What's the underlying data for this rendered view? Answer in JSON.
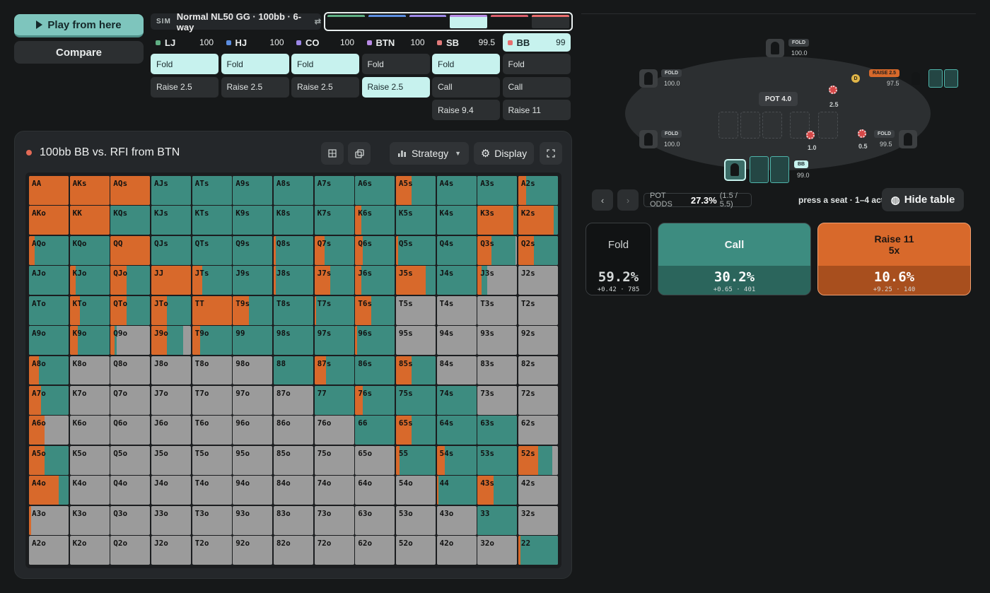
{
  "toolbar": {
    "play_label": "Play from here",
    "compare_label": "Compare"
  },
  "sim": {
    "tag": "SIM",
    "title": "Normal NL50 GG · 100bb · 6-way",
    "switch_icon": "swap-icon"
  },
  "history_colors": [
    "#5fae83",
    "#5b8de0",
    "#9c87e6",
    "#b98be6",
    "#d95e6b",
    "#e86d6d"
  ],
  "players": [
    {
      "name": "LJ",
      "stack": "100",
      "color": "#5fae83"
    },
    {
      "name": "HJ",
      "stack": "100",
      "color": "#5b8de0"
    },
    {
      "name": "CO",
      "stack": "100",
      "color": "#9c87e6"
    },
    {
      "name": "BTN",
      "stack": "100",
      "color": "#b98be6"
    },
    {
      "name": "SB",
      "stack": "99.5",
      "color": "#e27a7a"
    },
    {
      "name": "BB",
      "stack": "99",
      "color": "#e86d6d"
    }
  ],
  "actions": {
    "LJ": [
      "Fold",
      "Raise 2.5"
    ],
    "HJ": [
      "Fold",
      "Raise 2.5"
    ],
    "CO": [
      "Fold",
      "Raise 2.5"
    ],
    "BTN": [
      "Fold",
      "Raise 2.5"
    ],
    "SB": [
      "Fold",
      "Call",
      "Raise 9.4"
    ],
    "BB": [
      "Fold",
      "Call",
      "Raise 11"
    ]
  },
  "panel": {
    "title": "100bb BB vs. RFI from BTN",
    "strategy_label": "Strategy",
    "display_label": "Display"
  },
  "colors": {
    "fold": "#9b9b9b",
    "call": "#3d8c80",
    "raise": "#d8692b",
    "accent": "#7ec5bd"
  },
  "grid": [
    [
      "AA",
      "AKs",
      "AQs",
      "AJs",
      "ATs",
      "A9s",
      "A8s",
      "A7s",
      "A6s",
      "A5s",
      "A4s",
      "A3s",
      "A2s"
    ],
    [
      "AKo",
      "KK",
      "KQs",
      "KJs",
      "KTs",
      "K9s",
      "K8s",
      "K7s",
      "K6s",
      "K5s",
      "K4s",
      "K3s",
      "K2s"
    ],
    [
      "AQo",
      "KQo",
      "QQ",
      "QJs",
      "QTs",
      "Q9s",
      "Q8s",
      "Q7s",
      "Q6s",
      "Q5s",
      "Q4s",
      "Q3s",
      "Q2s"
    ],
    [
      "AJo",
      "KJo",
      "QJo",
      "JJ",
      "JTs",
      "J9s",
      "J8s",
      "J7s",
      "J6s",
      "J5s",
      "J4s",
      "J3s",
      "J2s"
    ],
    [
      "ATo",
      "KTo",
      "QTo",
      "JTo",
      "TT",
      "T9s",
      "T8s",
      "T7s",
      "T6s",
      "T5s",
      "T4s",
      "T3s",
      "T2s"
    ],
    [
      "A9o",
      "K9o",
      "Q9o",
      "J9o",
      "T9o",
      "99",
      "98s",
      "97s",
      "96s",
      "95s",
      "94s",
      "93s",
      "92s"
    ],
    [
      "A8o",
      "K8o",
      "Q8o",
      "J8o",
      "T8o",
      "98o",
      "88",
      "87s",
      "86s",
      "85s",
      "84s",
      "83s",
      "82s"
    ],
    [
      "A7o",
      "K7o",
      "Q7o",
      "J7o",
      "T7o",
      "97o",
      "87o",
      "77",
      "76s",
      "75s",
      "74s",
      "73s",
      "72s"
    ],
    [
      "A6o",
      "K6o",
      "Q6o",
      "J6o",
      "T6o",
      "96o",
      "86o",
      "76o",
      "66",
      "65s",
      "64s",
      "63s",
      "62s"
    ],
    [
      "A5o",
      "K5o",
      "Q5o",
      "J5o",
      "T5o",
      "95o",
      "85o",
      "75o",
      "65o",
      "55",
      "54s",
      "53s",
      "52s"
    ],
    [
      "A4o",
      "K4o",
      "Q4o",
      "J4o",
      "T4o",
      "94o",
      "84o",
      "74o",
      "64o",
      "54o",
      "44",
      "43s",
      "42s"
    ],
    [
      "A3o",
      "K3o",
      "Q3o",
      "J3o",
      "T3o",
      "93o",
      "83o",
      "73o",
      "63o",
      "53o",
      "43o",
      "33",
      "32s"
    ],
    [
      "A2o",
      "K2o",
      "Q2o",
      "J2o",
      "T2o",
      "92o",
      "82o",
      "72o",
      "62o",
      "52o",
      "42o",
      "32o",
      "22"
    ]
  ],
  "strategy": [
    [
      [
        0,
        0,
        100
      ],
      [
        0,
        0,
        100
      ],
      [
        0,
        0,
        100
      ],
      [
        0,
        100,
        0
      ],
      [
        0,
        100,
        0
      ],
      [
        0,
        100,
        0
      ],
      [
        0,
        100,
        0
      ],
      [
        0,
        100,
        0
      ],
      [
        0,
        100,
        0
      ],
      [
        0,
        60,
        40
      ],
      [
        0,
        100,
        0
      ],
      [
        0,
        100,
        0
      ],
      [
        0,
        80,
        20
      ]
    ],
    [
      [
        0,
        0,
        100
      ],
      [
        0,
        0,
        100
      ],
      [
        0,
        100,
        0
      ],
      [
        0,
        100,
        0
      ],
      [
        0,
        100,
        0
      ],
      [
        0,
        100,
        0
      ],
      [
        0,
        100,
        0
      ],
      [
        0,
        100,
        0
      ],
      [
        0,
        85,
        15
      ],
      [
        0,
        100,
        0
      ],
      [
        0,
        100,
        0
      ],
      [
        0,
        10,
        90
      ],
      [
        0,
        10,
        90
      ]
    ],
    [
      [
        0,
        85,
        15
      ],
      [
        0,
        100,
        0
      ],
      [
        0,
        0,
        100
      ],
      [
        0,
        100,
        0
      ],
      [
        0,
        100,
        0
      ],
      [
        0,
        100,
        0
      ],
      [
        0,
        95,
        5
      ],
      [
        0,
        75,
        25
      ],
      [
        0,
        80,
        20
      ],
      [
        0,
        95,
        5
      ],
      [
        0,
        100,
        0
      ],
      [
        5,
        60,
        35
      ],
      [
        0,
        60,
        40
      ]
    ],
    [
      [
        0,
        100,
        0
      ],
      [
        0,
        85,
        15
      ],
      [
        0,
        60,
        40
      ],
      [
        0,
        0,
        100
      ],
      [
        0,
        75,
        25
      ],
      [
        0,
        100,
        0
      ],
      [
        0,
        95,
        5
      ],
      [
        0,
        60,
        40
      ],
      [
        0,
        85,
        15
      ],
      [
        0,
        25,
        75
      ],
      [
        0,
        100,
        0
      ],
      [
        75,
        15,
        10
      ],
      [
        100,
        0,
        0
      ]
    ],
    [
      [
        0,
        100,
        0
      ],
      [
        0,
        75,
        25
      ],
      [
        0,
        60,
        40
      ],
      [
        0,
        60,
        40
      ],
      [
        0,
        0,
        100
      ],
      [
        0,
        60,
        40
      ],
      [
        0,
        100,
        0
      ],
      [
        0,
        95,
        5
      ],
      [
        0,
        60,
        40
      ],
      [
        100,
        0,
        0
      ],
      [
        100,
        0,
        0
      ],
      [
        100,
        0,
        0
      ],
      [
        100,
        0,
        0
      ]
    ],
    [
      [
        0,
        100,
        0
      ],
      [
        0,
        80,
        20
      ],
      [
        85,
        5,
        10
      ],
      [
        20,
        40,
        40
      ],
      [
        0,
        80,
        20
      ],
      [
        0,
        100,
        0
      ],
      [
        0,
        100,
        0
      ],
      [
        0,
        100,
        0
      ],
      [
        0,
        95,
        5
      ],
      [
        100,
        0,
        0
      ],
      [
        100,
        0,
        0
      ],
      [
        100,
        0,
        0
      ],
      [
        100,
        0,
        0
      ]
    ],
    [
      [
        0,
        75,
        25
      ],
      [
        100,
        0,
        0
      ],
      [
        100,
        0,
        0
      ],
      [
        100,
        0,
        0
      ],
      [
        100,
        0,
        0
      ],
      [
        100,
        0,
        0
      ],
      [
        0,
        100,
        0
      ],
      [
        0,
        70,
        30
      ],
      [
        0,
        100,
        0
      ],
      [
        0,
        60,
        40
      ],
      [
        100,
        0,
        0
      ],
      [
        100,
        0,
        0
      ],
      [
        100,
        0,
        0
      ]
    ],
    [
      [
        0,
        70,
        30
      ],
      [
        100,
        0,
        0
      ],
      [
        100,
        0,
        0
      ],
      [
        100,
        0,
        0
      ],
      [
        100,
        0,
        0
      ],
      [
        100,
        0,
        0
      ],
      [
        100,
        0,
        0
      ],
      [
        0,
        100,
        0
      ],
      [
        0,
        80,
        20
      ],
      [
        0,
        100,
        0
      ],
      [
        0,
        100,
        0
      ],
      [
        100,
        0,
        0
      ],
      [
        100,
        0,
        0
      ]
    ],
    [
      [
        60,
        0,
        40
      ],
      [
        100,
        0,
        0
      ],
      [
        100,
        0,
        0
      ],
      [
        100,
        0,
        0
      ],
      [
        100,
        0,
        0
      ],
      [
        100,
        0,
        0
      ],
      [
        100,
        0,
        0
      ],
      [
        100,
        0,
        0
      ],
      [
        0,
        100,
        0
      ],
      [
        0,
        60,
        40
      ],
      [
        0,
        100,
        0
      ],
      [
        0,
        100,
        0
      ],
      [
        100,
        0,
        0
      ]
    ],
    [
      [
        0,
        60,
        40
      ],
      [
        100,
        0,
        0
      ],
      [
        100,
        0,
        0
      ],
      [
        100,
        0,
        0
      ],
      [
        100,
        0,
        0
      ],
      [
        100,
        0,
        0
      ],
      [
        100,
        0,
        0
      ],
      [
        100,
        0,
        0
      ],
      [
        100,
        0,
        0
      ],
      [
        0,
        90,
        10
      ],
      [
        0,
        80,
        20
      ],
      [
        0,
        100,
        0
      ],
      [
        15,
        35,
        50
      ]
    ],
    [
      [
        0,
        25,
        75
      ],
      [
        100,
        0,
        0
      ],
      [
        100,
        0,
        0
      ],
      [
        100,
        0,
        0
      ],
      [
        100,
        0,
        0
      ],
      [
        100,
        0,
        0
      ],
      [
        100,
        0,
        0
      ],
      [
        100,
        0,
        0
      ],
      [
        100,
        0,
        0
      ],
      [
        100,
        0,
        0
      ],
      [
        0,
        95,
        5
      ],
      [
        0,
        60,
        40
      ],
      [
        100,
        0,
        0
      ]
    ],
    [
      [
        95,
        0,
        5
      ],
      [
        100,
        0,
        0
      ],
      [
        100,
        0,
        0
      ],
      [
        100,
        0,
        0
      ],
      [
        100,
        0,
        0
      ],
      [
        100,
        0,
        0
      ],
      [
        100,
        0,
        0
      ],
      [
        100,
        0,
        0
      ],
      [
        100,
        0,
        0
      ],
      [
        100,
        0,
        0
      ],
      [
        100,
        0,
        0
      ],
      [
        0,
        100,
        0
      ],
      [
        100,
        0,
        0
      ]
    ],
    [
      [
        100,
        0,
        0
      ],
      [
        100,
        0,
        0
      ],
      [
        100,
        0,
        0
      ],
      [
        100,
        0,
        0
      ],
      [
        100,
        0,
        0
      ],
      [
        100,
        0,
        0
      ],
      [
        100,
        0,
        0
      ],
      [
        100,
        0,
        0
      ],
      [
        100,
        0,
        0
      ],
      [
        100,
        0,
        0
      ],
      [
        100,
        0,
        0
      ],
      [
        100,
        0,
        0
      ],
      [
        0,
        95,
        5
      ]
    ]
  ],
  "table": {
    "pot_label": "POT",
    "pot_value": "4.0",
    "seats": {
      "lj": {
        "badge": "FOLD",
        "stack": "100.0"
      },
      "hj": {
        "badge": "FOLD",
        "stack": "100.0"
      },
      "co": {
        "badge": "FOLD",
        "stack": "100.0"
      },
      "btn": {
        "badge": "RAISE 2.5",
        "stack": "97.5"
      },
      "sb": {
        "badge": "FOLD",
        "stack": "99.5"
      },
      "bb": {
        "badge": "BB",
        "stack": "99.0"
      }
    },
    "dealer": "D",
    "bets": {
      "btn": "2.5",
      "bb": "1.0",
      "sb": "0.5"
    }
  },
  "controls": {
    "prev_icon": "chevron-left-icon",
    "next_icon": "chevron-right-icon",
    "pot_odds_label": "POT ODDS",
    "pot_odds_value": "27.3%",
    "pot_odds_detail": "(1.5 / 5.5)",
    "hint": "press a seat · 1–4 act",
    "hide_label": "Hide table"
  },
  "options": [
    {
      "label": "Fold",
      "sublabel": "",
      "pct": "59.2%",
      "ev": "+0.42",
      "combos": "785"
    },
    {
      "label": "Call",
      "sublabel": "",
      "pct": "30.2%",
      "ev": "+0.65",
      "combos": "401"
    },
    {
      "label": "Raise 11",
      "sublabel": "5x",
      "pct": "10.6%",
      "ev": "+9.25",
      "combos": "140"
    }
  ]
}
